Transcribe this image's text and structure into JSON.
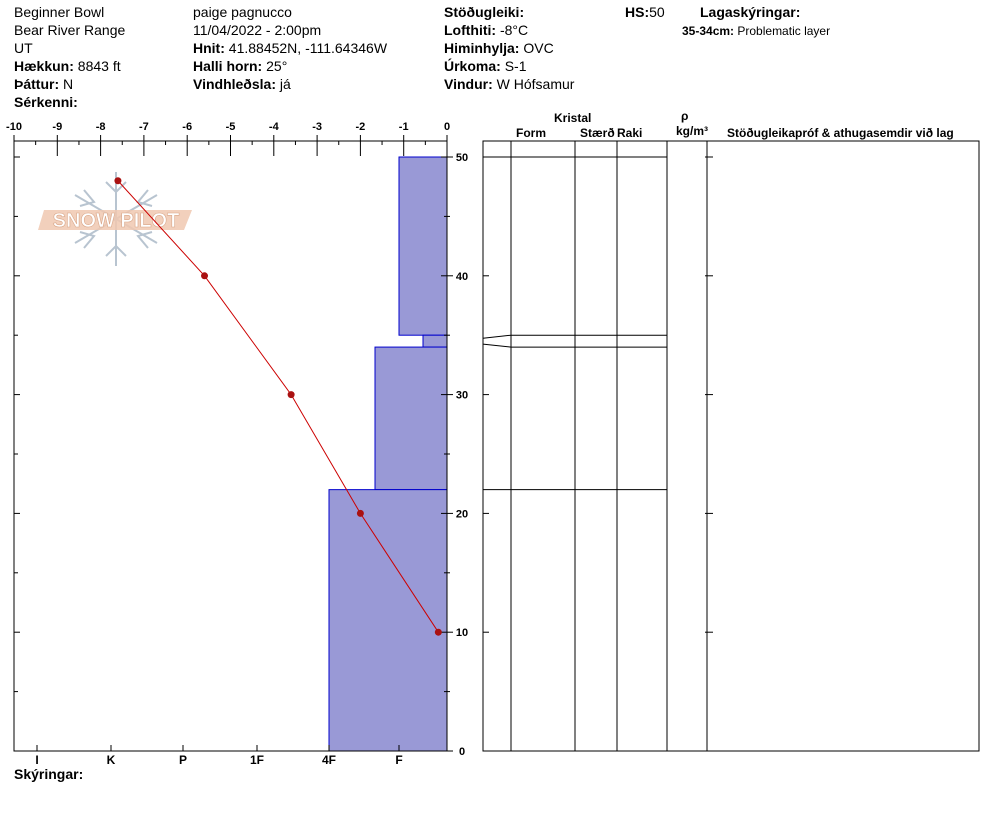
{
  "header": {
    "location": "Beginner Bowl",
    "range": "Bear River Range",
    "state": "UT",
    "elevation_label": "Hækkun:",
    "elevation_value": "8843 ft",
    "aspect_label": "Þáttur:",
    "aspect_value": "N",
    "features_label": "Sérkenni:",
    "observer": "paige pagnucco",
    "datetime": "11/04/2022 - 2:00pm",
    "coords_label": "Hnit:",
    "coords_value": "41.88452N, -111.64346W",
    "slope_label": "Halli horn:",
    "slope_value": "25°",
    "wind_loading_label": "Vindhleðsla:",
    "wind_loading_value": "já",
    "stability_label": "Stöðugleiki:",
    "air_temp_label": "Lofthiti:",
    "air_temp_value": "-8°C",
    "sky_label": "Himinhylja:",
    "sky_value": "OVC",
    "precip_label": "Úrkoma:",
    "precip_value": "S-1",
    "wind_label": "Vindur:",
    "wind_value": "W Hófsamur",
    "hs_label": "HS:",
    "hs_value": "50",
    "layer_notes_label": "Lagaskýringar:",
    "layer_note_range": "35-34cm:",
    "layer_note_text": "Problematic layer",
    "footer_label": "Skýringar:"
  },
  "table": {
    "group_label": "Kristal",
    "col_form": "Form",
    "col_size": "Stærð",
    "col_moisture": "Raki",
    "col_density_symbol": "ρ",
    "col_density_unit": "kg/m³",
    "col_tests": "Stöðugleikapróf & athugasemdir við lag"
  },
  "watermark": "SNOW PILOT",
  "colors": {
    "hardness_fill": "#9999d6",
    "hardness_edge": "#0000cc",
    "temp_line": "#cc0000",
    "temp_point": "#aa1111",
    "watermark": "#f0c8b0",
    "snowflake": "#b8c4d0"
  },
  "chart_data": {
    "type": "snow-profile",
    "temperature_axis": {
      "ticks": [
        "-10",
        "-9",
        "-8",
        "-7",
        "-6",
        "-5",
        "-4",
        "-3",
        "-2",
        "-1",
        "0"
      ],
      "range": [
        -10,
        0
      ]
    },
    "depth_axis": {
      "ticks": [
        "50",
        "40",
        "30",
        "20",
        "10",
        "0"
      ],
      "range": [
        0,
        50
      ]
    },
    "hardness_axis": {
      "ticks": [
        "I",
        "K",
        "P",
        "1F",
        "4F",
        "F"
      ]
    },
    "temperature_profile": [
      {
        "temp": -7.6,
        "depth": 48
      },
      {
        "temp": -5.6,
        "depth": 40
      },
      {
        "temp": -3.6,
        "depth": 30
      },
      {
        "temp": -2.0,
        "depth": 20
      },
      {
        "temp": -0.2,
        "depth": 10
      }
    ],
    "hardness_layers": [
      {
        "top": 50,
        "bottom": 35,
        "hardness": "F"
      },
      {
        "top": 35,
        "bottom": 34,
        "hardness": "F-"
      },
      {
        "top": 34,
        "bottom": 22,
        "hardness": "4F-"
      },
      {
        "top": 22,
        "bottom": 0,
        "hardness": "4F"
      }
    ],
    "layer_boundaries": [
      50,
      35,
      34,
      22
    ]
  }
}
